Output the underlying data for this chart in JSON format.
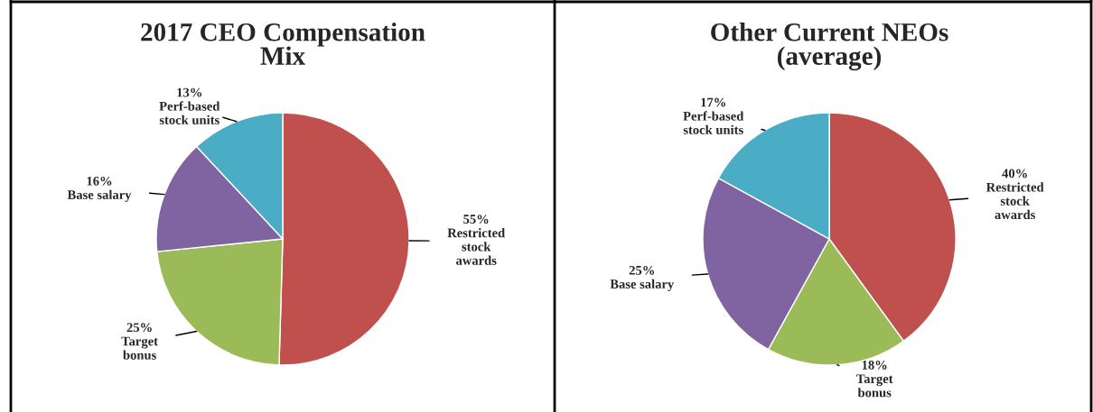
{
  "chart_data": [
    {
      "type": "pie",
      "title": "2017 CEO Compensation\nMix",
      "categories": [
        "Restricted\nstock\nawards",
        "Target\nbonus",
        "Base salary",
        "Perf-based\nstock units"
      ],
      "values": [
        55,
        25,
        16,
        13
      ],
      "value_labels": [
        "55%",
        "25%",
        "16%",
        "13%"
      ],
      "colors": [
        "#c0504d",
        "#9bbb59",
        "#8064a2",
        "#4bacc6"
      ]
    },
    {
      "type": "pie",
      "title": "Other Current NEOs\n(average)",
      "categories": [
        "Restricted\nstock\nawards",
        "Target\nbonus",
        "Base salary",
        "Perf-based\nstock units"
      ],
      "values": [
        40,
        18,
        25,
        17
      ],
      "value_labels": [
        "40%",
        "18%",
        "25%",
        "17%"
      ],
      "colors": [
        "#c0504d",
        "#9bbb59",
        "#8064a2",
        "#4bacc6"
      ]
    }
  ]
}
